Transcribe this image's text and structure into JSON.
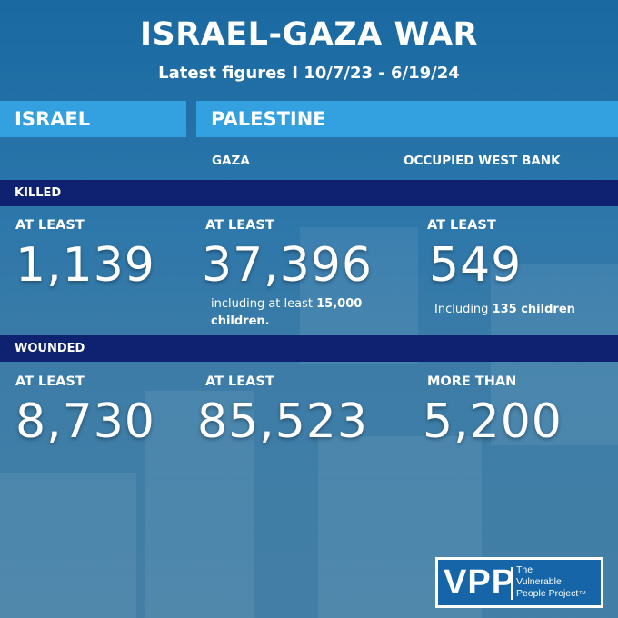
{
  "header": {
    "title": "ISRAEL-GAZA WAR",
    "subtitle": "Latest figures I 10/7/23 - 6/19/24"
  },
  "tabs": {
    "israel": "ISRAEL",
    "palestine": "PALESTINE"
  },
  "columns": {
    "gaza": "GAZA",
    "west_bank": "OCCUPIED WEST BANK"
  },
  "killed": {
    "label": "KILLED",
    "israel": {
      "qualifier": "AT LEAST",
      "value": "1,139"
    },
    "gaza": {
      "qualifier": "AT LEAST",
      "value": "37,396",
      "note_prefix": "including at least ",
      "note_bold": "15,000",
      "note_line2": "children."
    },
    "west_bank": {
      "qualifier": "AT LEAST",
      "value": "549",
      "note_prefix": "Including ",
      "note_bold": "135 children"
    }
  },
  "wounded": {
    "label": "WOUNDED",
    "israel": {
      "qualifier": "AT LEAST",
      "value": "8,730"
    },
    "gaza": {
      "qualifier": "AT LEAST",
      "value": "85,523"
    },
    "west_bank": {
      "qualifier": "MORE THAN",
      "value": "5,200"
    }
  },
  "logo": {
    "mark": "VPP",
    "line1": "The",
    "line2": "Vulnerable",
    "line3": "People Project",
    "tm": "TM"
  },
  "colors": {
    "tab_blue": "#33a0e0",
    "band_navy": "#0f2272",
    "background_blue": "#1f6ea6"
  }
}
